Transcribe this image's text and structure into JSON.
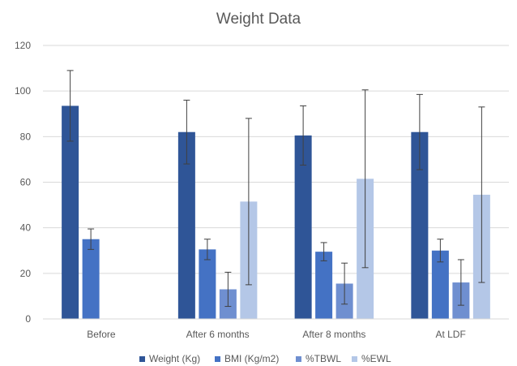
{
  "chart_data": {
    "type": "bar",
    "title": "Weight Data",
    "xlabel": "",
    "ylabel": "",
    "ylim": [
      0,
      120
    ],
    "yticks": [
      0,
      20,
      40,
      60,
      80,
      100,
      120
    ],
    "grid": true,
    "legend_position": "bottom",
    "categories": [
      "Before",
      "After 6 months",
      "After 8 months",
      "At LDF"
    ],
    "series": [
      {
        "name": "Weight (Kg)",
        "color": "#2f5597",
        "values": [
          93.5,
          82,
          80.5,
          82
        ],
        "error": [
          15.5,
          14,
          13,
          16.5
        ]
      },
      {
        "name": "BMI (Kg/m2)",
        "color": "#4472c4",
        "values": [
          35,
          30.5,
          29.5,
          30
        ],
        "error": [
          4.5,
          4.5,
          4,
          5
        ]
      },
      {
        "name": "%TBWL",
        "color": "#6f8fd0",
        "values": [
          null,
          13,
          15.5,
          16
        ],
        "error": [
          null,
          7.5,
          9,
          10
        ]
      },
      {
        "name": "%EWL",
        "color": "#b4c7e7",
        "values": [
          null,
          51.5,
          61.5,
          54.5
        ],
        "error": [
          null,
          36.5,
          39,
          38.5
        ]
      }
    ]
  }
}
